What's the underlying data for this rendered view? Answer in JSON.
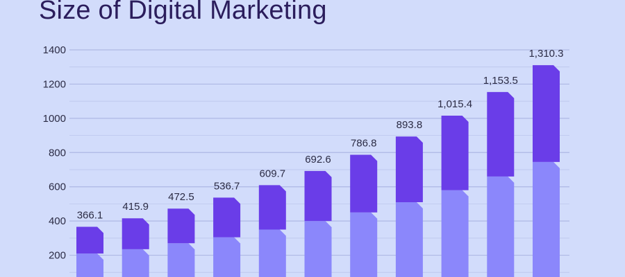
{
  "title": "Size of Digital Marketing",
  "colors": {
    "background": "#d2dcfb",
    "grid": "#aeb8e4",
    "upper_segment": "#6a3de8",
    "lower_segment": "#8b87fb",
    "title": "#2b1d5c"
  },
  "chart_data": {
    "type": "bar",
    "stacked": true,
    "title": "Size of Digital Marketing",
    "categories": [
      "",
      "",
      "",
      "",
      "",
      "",
      "",
      "",
      "",
      "",
      ""
    ],
    "totals": [
      366.1,
      415.9,
      472.5,
      536.7,
      609.7,
      692.6,
      786.8,
      893.8,
      1015.4,
      1153.5,
      1310.3
    ],
    "total_labels": [
      "366.1",
      "415.9",
      "472.5",
      "536.7",
      "609.7",
      "692.6",
      "786.8",
      "893.8",
      "1,015.4",
      "1,153.5",
      "1,310.3"
    ],
    "series": [
      {
        "values": [
          210,
          235,
          270,
          305,
          350,
          400,
          450,
          510,
          580,
          660,
          745
        ]
      },
      {
        "values": [
          156.1,
          180.9,
          202.5,
          231.7,
          259.7,
          292.6,
          336.8,
          383.8,
          435.4,
          493.5,
          565.3
        ]
      }
    ],
    "yticks": [
      200,
      400,
      600,
      800,
      1000,
      1200,
      1400
    ],
    "ylim": [
      0,
      1400
    ],
    "grid": true,
    "legend": "none",
    "xlabel": "",
    "ylabel": ""
  }
}
